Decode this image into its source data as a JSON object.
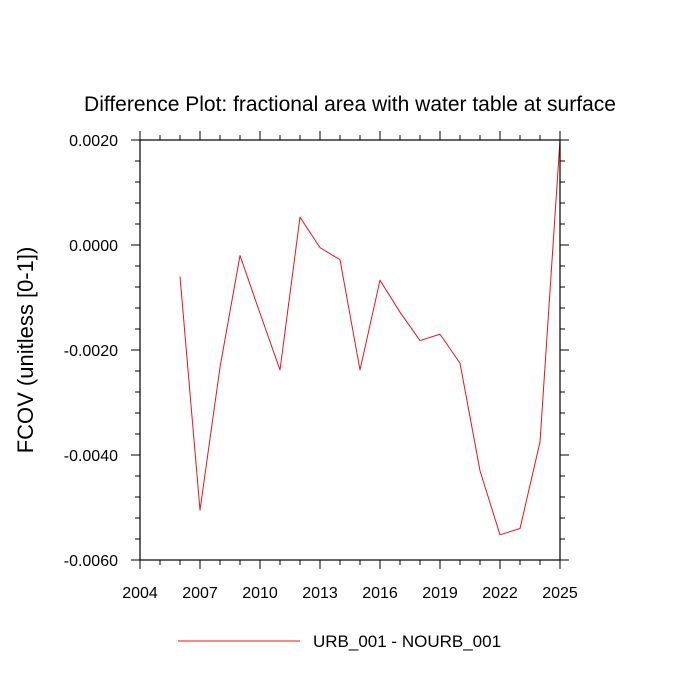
{
  "chart_data": {
    "type": "line",
    "title": "Difference Plot: fractional area with water table at surface",
    "xlabel": "",
    "ylabel": "FCOV  (unitless [0-1])",
    "xlim": [
      2004,
      2025
    ],
    "ylim": [
      -0.006,
      0.002
    ],
    "xticks": [
      2004,
      2007,
      2010,
      2013,
      2016,
      2019,
      2022,
      2025
    ],
    "xtick_labels": [
      "2004",
      "2007",
      "2010",
      "2013",
      "2016",
      "2019",
      "2022",
      "2025"
    ],
    "yticks": [
      -0.006,
      -0.004,
      -0.002,
      0.0,
      0.002
    ],
    "ytick_labels": [
      "-0.0060",
      "-0.0040",
      "-0.0020",
      "0.0000",
      "0.0020"
    ],
    "grid": false,
    "legend_position": "bottom-center",
    "series": [
      {
        "name": "URB_001 - NOURB_001",
        "color": "#e8141a",
        "x": [
          2006,
          2007,
          2008,
          2009,
          2010,
          2011,
          2012,
          2013,
          2014,
          2015,
          2016,
          2017,
          2018,
          2019,
          2020,
          2021,
          2022,
          2023,
          2024,
          2025
        ],
        "y": [
          -0.0006,
          -0.00505,
          -0.00233,
          -0.0002,
          -0.0013,
          -0.00238,
          0.00053,
          -5e-05,
          -0.00028,
          -0.00238,
          -0.00067,
          -0.00128,
          -0.00182,
          -0.0017,
          -0.00225,
          -0.0043,
          -0.00552,
          -0.0054,
          -0.00375,
          0.002
        ]
      }
    ]
  }
}
